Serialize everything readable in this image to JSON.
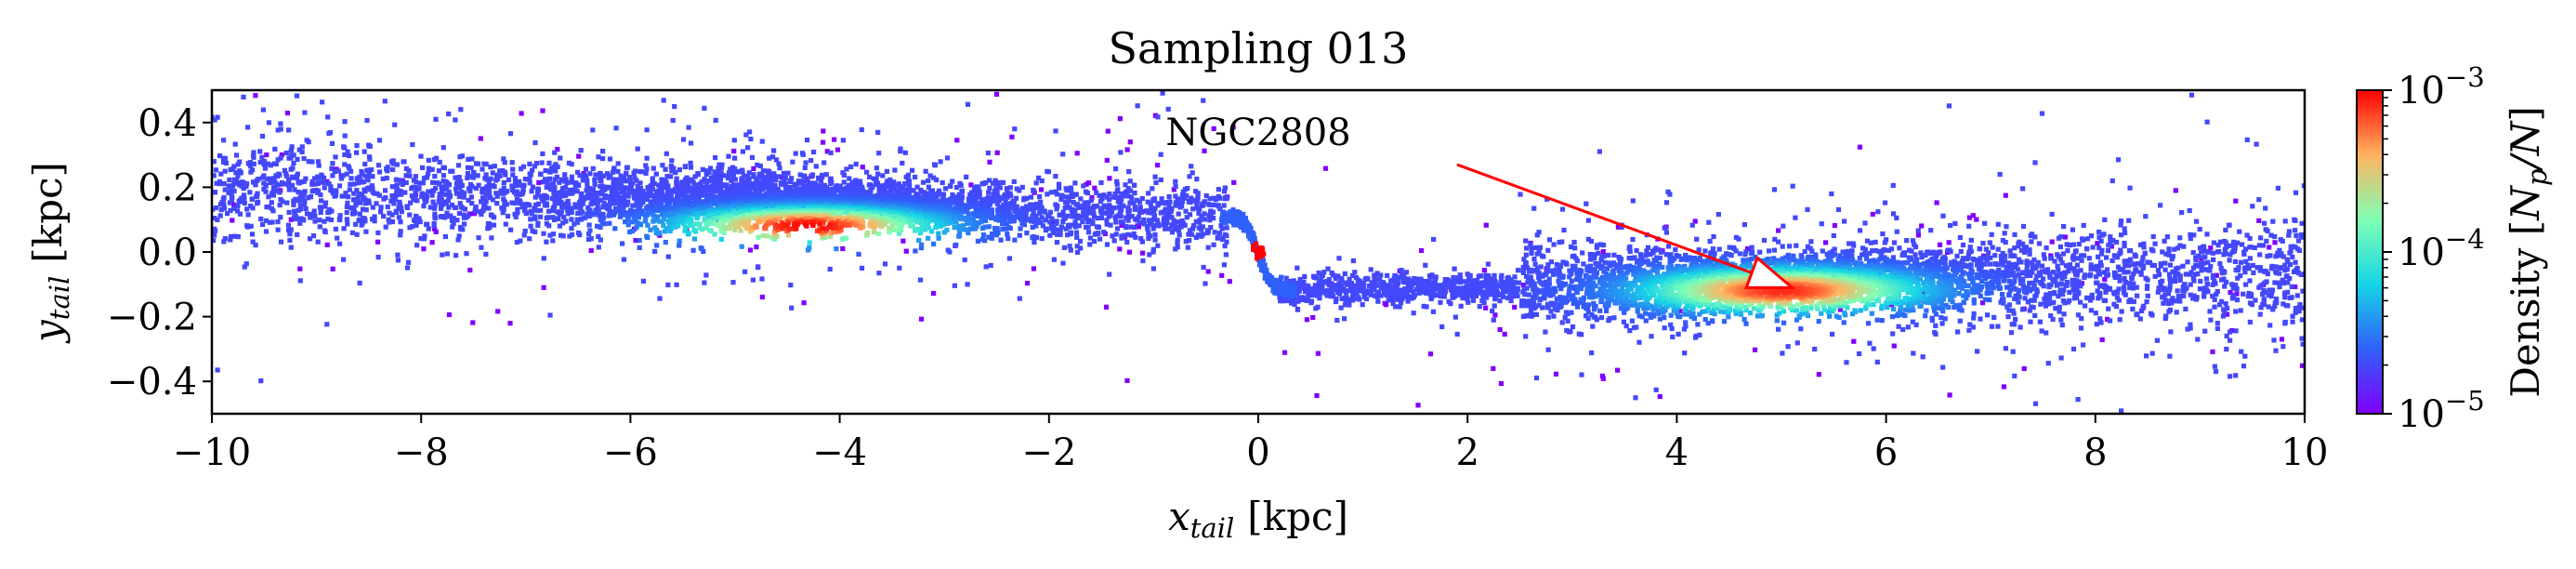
{
  "chart_data": {
    "type": "heatmap",
    "title": "Sampling 013",
    "xlabel": {
      "symbol": "x",
      "subscript": "tail",
      "unit": "[kpc]"
    },
    "ylabel": {
      "symbol": "y",
      "subscript": "tail",
      "unit": "[kpc]"
    },
    "xlim": [
      -10,
      10
    ],
    "ylim": [
      -0.5,
      0.5
    ],
    "x_ticks": [
      -10,
      -8,
      -6,
      -4,
      -2,
      0,
      2,
      4,
      6,
      8,
      10
    ],
    "x_tick_labels": [
      "−10",
      "−8",
      "−6",
      "−4",
      "−2",
      "0",
      "2",
      "4",
      "6",
      "8",
      "10"
    ],
    "y_ticks": [
      0.4,
      0.2,
      0.0,
      -0.2,
      -0.4
    ],
    "y_tick_labels": [
      "0.4",
      "0.2",
      "0.0",
      "−0.2",
      "−0.4"
    ],
    "grid": false,
    "colormap": "rainbow",
    "colorbar": {
      "label": {
        "prefix": "Density ",
        "N": "N",
        "sub": "p",
        "suffix": "/N"
      },
      "scale": "log",
      "range": [
        1e-05,
        0.001
      ],
      "ticks": [
        {
          "value": 0.001,
          "base": "10",
          "exp": "−3"
        },
        {
          "value": 0.0001,
          "base": "10",
          "exp": "−4"
        },
        {
          "value": 1e-05,
          "base": "10",
          "exp": "−5"
        }
      ]
    },
    "structures": [
      {
        "name": "leading tail",
        "x_range": [
          -10,
          -0.3
        ],
        "y_center_at_x_min": 0.2,
        "y_center_at_x_max": 0.11,
        "peak_density_at": [
          -4.3,
          0.08
        ]
      },
      {
        "name": "cluster",
        "x": 0.0,
        "y": 0.0
      },
      {
        "name": "trailing tail",
        "x_range": [
          0.2,
          10
        ],
        "y_center_at_x_min": -0.12,
        "y_center_at_x_max": -0.07,
        "peak_density_at": [
          5.0,
          -0.12
        ]
      }
    ],
    "annotation": {
      "text": "NGC2808",
      "text_at": [
        0.0,
        0.33
      ],
      "arrow_from": [
        1.9,
        0.27
      ],
      "arrow_to": [
        5.1,
        -0.11
      ],
      "color": "#ff0000"
    }
  }
}
